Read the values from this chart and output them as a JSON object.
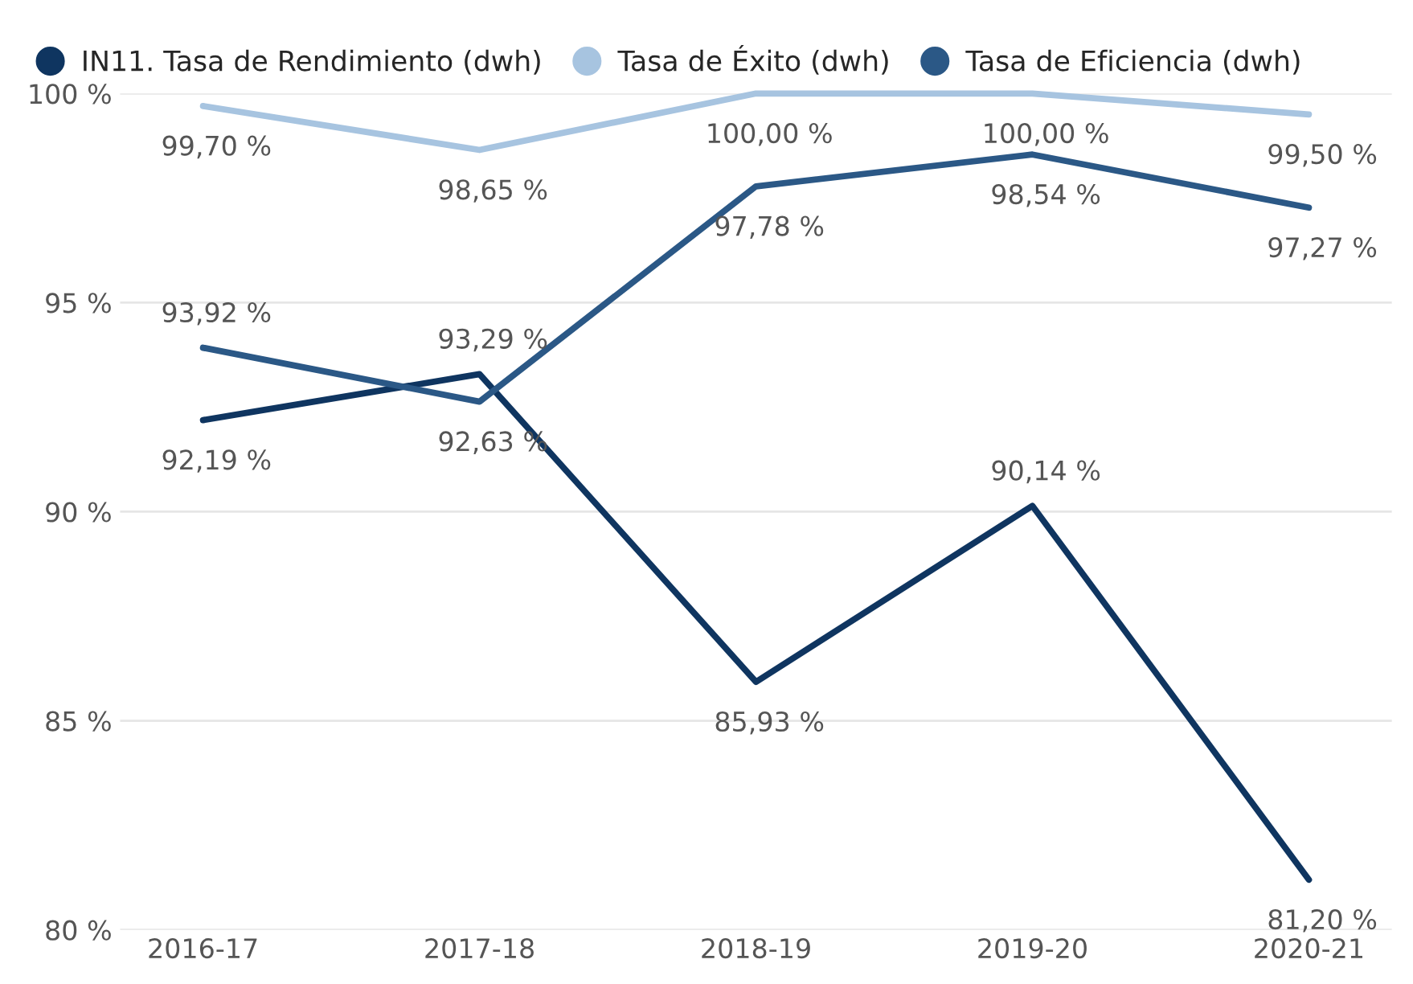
{
  "chart_data": {
    "type": "line",
    "categories": [
      "2016-17",
      "2017-18",
      "2018-19",
      "2019-20",
      "2020-21"
    ],
    "series": [
      {
        "name": "IN11. Tasa de Rendimiento (dwh)",
        "color": "#0f3560",
        "values": [
          92.19,
          93.29,
          85.93,
          90.14,
          81.2
        ],
        "value_labels": [
          "92,19 %",
          "93,29 %",
          "85,93 %",
          "90,14 %",
          "81,20 %"
        ]
      },
      {
        "name": "Tasa de Éxito (dwh)",
        "color": "#a7c4e0",
        "values": [
          99.7,
          98.65,
          100.0,
          100.0,
          99.5
        ],
        "value_labels": [
          "99,70 %",
          "98,65 %",
          "100,00 %",
          "100,00 %",
          "99,50 %"
        ]
      },
      {
        "name": "Tasa de Eficiencia (dwh)",
        "color": "#2b5886",
        "values": [
          93.92,
          92.63,
          97.78,
          98.54,
          97.27
        ],
        "value_labels": [
          "93,92 %",
          "92,63 %",
          "97,78 %",
          "98,54 %",
          "97,27 %"
        ]
      }
    ],
    "ylim": [
      80,
      100
    ],
    "yticks": [
      {
        "value": 80,
        "label": "80 %"
      },
      {
        "value": 85,
        "label": "85 %"
      },
      {
        "value": 90,
        "label": "90 %"
      },
      {
        "value": 95,
        "label": "95 %"
      },
      {
        "value": 100,
        "label": "100 %"
      }
    ],
    "grid": "y",
    "legend": "top left",
    "marker": "none",
    "line_style": "solid"
  }
}
